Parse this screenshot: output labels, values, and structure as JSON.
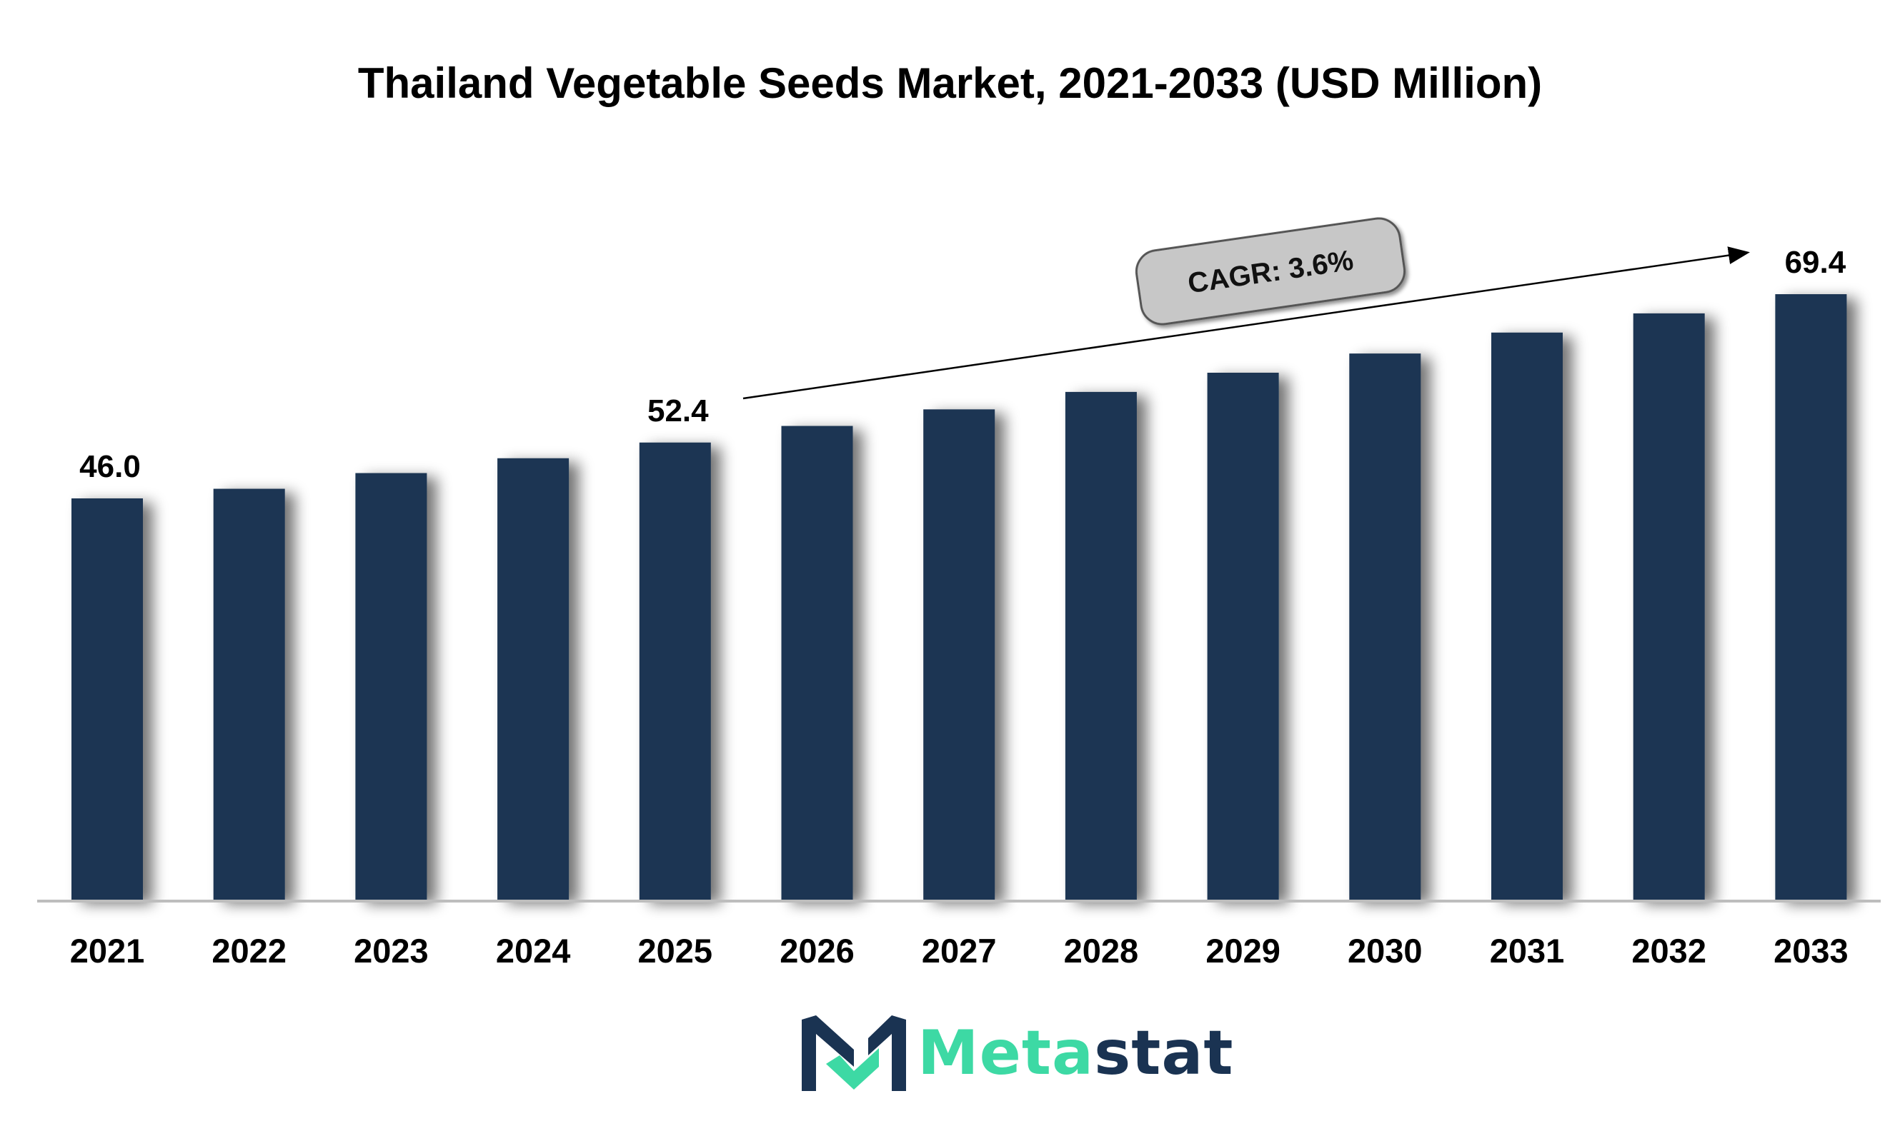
{
  "chart_data": {
    "type": "bar",
    "title": "Thailand Vegetable Seeds Market, 2021-2033 (USD Million)",
    "categories": [
      "2021",
      "2022",
      "2023",
      "2024",
      "2025",
      "2026",
      "2027",
      "2028",
      "2029",
      "2030",
      "2031",
      "2032",
      "2033"
    ],
    "values": [
      46.0,
      47.1,
      48.9,
      50.6,
      52.4,
      54.3,
      56.2,
      58.2,
      60.4,
      62.6,
      65.0,
      67.2,
      69.4
    ],
    "value_labels": {
      "0": "46.0",
      "4": "52.4",
      "12": "69.4"
    },
    "ylim": [
      0,
      72
    ],
    "annotation": "CAGR: 3.6%",
    "bar_color": "#1b3452",
    "grid": false,
    "legend": "none"
  },
  "brand": {
    "name_part1": "Meta",
    "name_part2": "stat",
    "color_primary": "#3dd9a4",
    "color_secondary": "#1a3352"
  }
}
